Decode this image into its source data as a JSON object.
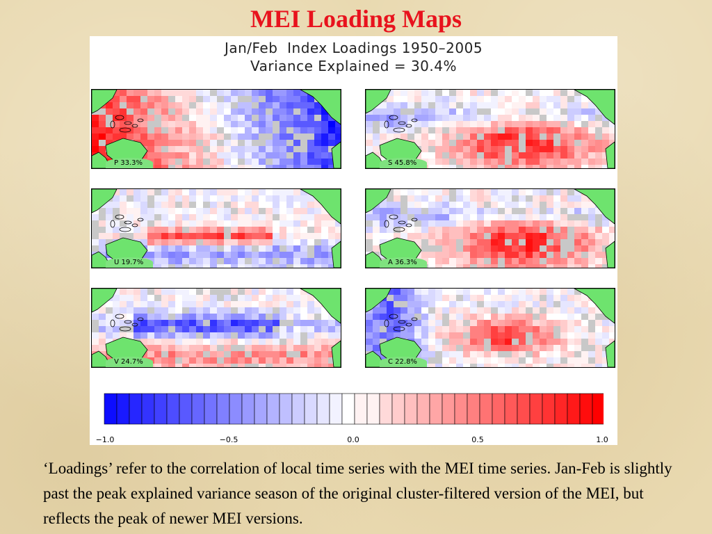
{
  "slide": {
    "title": "MEI  Loading Maps",
    "caption": "‘Loadings’ refer to the correlation of local time series with the MEI time series. Jan-Feb is slightly past the peak explained variance season of the original cluster-filtered version of the MEI, but reflects the peak of newer MEI versions."
  },
  "figure": {
    "title_line1": "Jan/Feb  Index Loadings 1950–2005",
    "title_line2": "Variance Explained = 30.4%",
    "panels": [
      {
        "label": "P 33.3%",
        "pattern": "west-pos"
      },
      {
        "label": "S 45.8%",
        "pattern": "east-pos"
      },
      {
        "label": "U 19.7%",
        "pattern": "band-pos"
      },
      {
        "label": "A 36.3%",
        "pattern": "east-pos"
      },
      {
        "label": "V 24.7%",
        "pattern": "band-neg"
      },
      {
        "label": "C 22.8%",
        "pattern": "center-pos"
      }
    ],
    "colorbar": {
      "ticks": [
        "−1.0",
        "−0.5",
        "0.0",
        "0.5",
        "1.0"
      ],
      "negative_color": "#0000ff",
      "zero_color": "#ffffff",
      "positive_color": "#ff0000"
    },
    "land_color": "#6ee36e",
    "missing_color": "#c8c8c8"
  }
}
